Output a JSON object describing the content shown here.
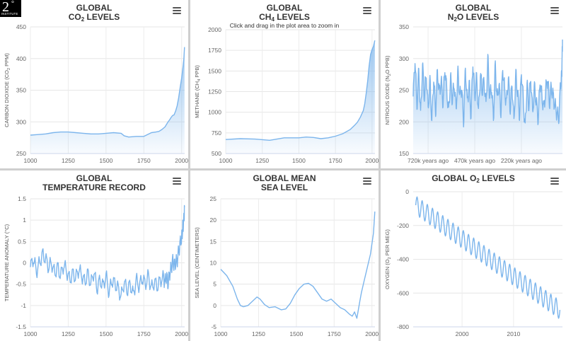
{
  "logo": {
    "numeral": "2",
    "degree": "°",
    "text": "INSTITUTE"
  },
  "panels": [
    {
      "id": "co2",
      "title_lines": [
        [
          "GLOBAL"
        ],
        [
          "CO",
          {
            "sub": "2"
          },
          " LEVELS"
        ]
      ],
      "hint": "",
      "chart_data": {
        "type": "area",
        "ylabel_parts": [
          [
            "CARBON DIOXIDE (CO"
          ],
          [
            {
              "sub": "2"
            }
          ],
          [
            " PPM)"
          ]
        ],
        "xlim": [
          1000,
          2020
        ],
        "ylim": [
          250,
          450
        ],
        "xticks": [
          1000,
          1250,
          1500,
          1750,
          2000
        ],
        "yticks": [
          250,
          300,
          350,
          400,
          450
        ],
        "series": [
          {
            "x": [
              1000,
              1050,
              1100,
              1150,
              1200,
              1250,
              1300,
              1350,
              1400,
              1450,
              1500,
              1550,
              1600,
              1620,
              1650,
              1700,
              1750,
              1800,
              1830,
              1850,
              1870,
              1890,
              1900,
              1910,
              1920,
              1930,
              1940,
              1950,
              1960,
              1970,
              1980,
              1990,
              2000,
              2005,
              2010,
              2015,
              2019
            ],
            "y": [
              279,
              280,
              281,
              283,
              284,
              284,
              283,
              282,
              281,
              281,
              282,
              283,
              282,
              278,
              276,
              277,
              277,
              283,
              284,
              285,
              288,
              292,
              296,
              300,
              303,
              307,
              310,
              311,
              317,
              325,
              338,
              354,
              369,
              379,
              389,
              400,
              418
            ]
          }
        ]
      }
    },
    {
      "id": "ch4",
      "title_lines": [
        [
          "GLOBAL"
        ],
        [
          "CH",
          {
            "sub": "4"
          },
          " LEVELS"
        ]
      ],
      "hint": "Click and drag in the plot area to zoom in",
      "chart_data": {
        "type": "area",
        "ylabel_parts": [
          [
            "METHANE (CH"
          ],
          [
            {
              "sub": "4"
            }
          ],
          [
            " PPB)"
          ]
        ],
        "xlim": [
          1000,
          2020
        ],
        "ylim": [
          500,
          2000
        ],
        "xticks": [
          1000,
          1250,
          1500,
          1750,
          2000
        ],
        "yticks": [
          500,
          750,
          1000,
          1250,
          1500,
          1750,
          2000
        ],
        "series": [
          {
            "x": [
              1000,
              1100,
              1200,
              1300,
              1400,
              1500,
              1550,
              1600,
              1650,
              1700,
              1750,
              1800,
              1850,
              1880,
              1900,
              1920,
              1940,
              1950,
              1960,
              1970,
              1980,
              1990,
              2000,
              2010,
              2019
            ],
            "y": [
              670,
              680,
              675,
              660,
              690,
              690,
              700,
              695,
              680,
              690,
              710,
              740,
              790,
              840,
              880,
              940,
              1020,
              1100,
              1230,
              1380,
              1560,
              1700,
              1760,
              1800,
              1870
            ]
          }
        ]
      }
    },
    {
      "id": "n2o",
      "title_lines": [
        [
          "GLOBAL"
        ],
        [
          "N",
          {
            "sub": "2"
          },
          "O LEVELS"
        ]
      ],
      "hint": "",
      "chart_data": {
        "type": "area",
        "ylabel_parts": [
          [
            "NITROUS OXIDE (N"
          ],
          [
            {
              "sub": "2"
            }
          ],
          [
            "O PPB)"
          ]
        ],
        "xlim": [
          800,
          0
        ],
        "ylim": [
          150,
          350
        ],
        "xticks": [
          720,
          470,
          220
        ],
        "xtick_labels": [
          "720k years ago",
          "470k years ago",
          "220k years ago"
        ],
        "yticks": [
          150,
          200,
          250,
          300,
          350
        ],
        "series": [
          {
            "x": [
              800,
              790,
              780,
              770,
              760,
              750,
              740,
              730,
              720,
              710,
              700,
              690,
              680,
              670,
              660,
              650,
              640,
              630,
              620,
              610,
              600,
              590,
              580,
              570,
              560,
              550,
              540,
              530,
              520,
              510,
              500,
              490,
              480,
              470,
              460,
              450,
              440,
              430,
              420,
              410,
              400,
              390,
              380,
              370,
              360,
              350,
              340,
              330,
              320,
              310,
              300,
              290,
              280,
              270,
              260,
              250,
              240,
              230,
              220,
              210,
              200,
              190,
              180,
              170,
              160,
              150,
              140,
              130,
              120,
              110,
              100,
              90,
              80,
              70,
              60,
              50,
              40,
              30,
              20,
              10,
              5,
              2,
              0
            ],
            "y": [
              240,
              300,
              225,
              280,
              210,
              290,
              240,
              275,
              220,
              265,
              200,
              270,
              215,
              280,
              245,
              265,
              230,
              285,
              250,
              215,
              270,
              235,
              260,
              220,
              280,
              240,
              255,
              200,
              285,
              230,
              260,
              210,
              295,
              240,
              270,
              215,
              275,
              250,
              265,
              225,
              300,
              240,
              255,
              205,
              290,
              235,
              260,
              215,
              285,
              250,
              230,
              270,
              220,
              260,
              200,
              275,
              245,
              210,
              280,
              235,
              190,
              260,
              225,
              270,
              215,
              255,
              230,
              205,
              265,
              240,
              220,
              250,
              270,
              230,
              255,
              240,
              225,
              215,
              205,
              260,
              270,
              300,
              330
            ]
          }
        ]
      }
    },
    {
      "id": "temp",
      "title_lines": [
        [
          "GLOBAL"
        ],
        [
          "TEMPERATURE RECORD"
        ]
      ],
      "hint": "",
      "chart_data": {
        "type": "line",
        "ylabel_parts": [
          [
            "TEMPERATURE ANOMALY (°C)"
          ]
        ],
        "xlim": [
          1000,
          2020
        ],
        "ylim": [
          -1.5,
          1.5
        ],
        "xticks": [
          1000,
          1250,
          1500,
          1750,
          2000
        ],
        "yticks": [
          -1.5,
          -1,
          -0.5,
          0,
          0.5,
          1,
          1.5
        ],
        "series": [
          {
            "x": [
              1000,
              1020,
              1040,
              1060,
              1080,
              1100,
              1120,
              1140,
              1160,
              1180,
              1200,
              1220,
              1240,
              1260,
              1280,
              1300,
              1320,
              1340,
              1360,
              1380,
              1400,
              1420,
              1440,
              1460,
              1480,
              1500,
              1520,
              1540,
              1560,
              1580,
              1600,
              1620,
              1640,
              1660,
              1680,
              1700,
              1720,
              1740,
              1760,
              1780,
              1800,
              1820,
              1840,
              1860,
              1880,
              1890,
              1900,
              1910,
              1920,
              1930,
              1940,
              1950,
              1960,
              1970,
              1980,
              1990,
              2000,
              2005,
              2010,
              2015,
              2019
            ],
            "y": [
              -0.1,
              0.1,
              -0.2,
              0.0,
              0.2,
              0.1,
              -0.1,
              0.0,
              -0.25,
              -0.1,
              -0.3,
              -0.05,
              -0.2,
              -0.4,
              -0.25,
              -0.35,
              -0.15,
              -0.3,
              -0.45,
              -0.25,
              -0.5,
              -0.2,
              -0.6,
              -0.4,
              -0.55,
              -0.3,
              -0.7,
              -0.4,
              -0.5,
              -0.6,
              -0.8,
              -0.45,
              -0.65,
              -0.5,
              -0.75,
              -0.4,
              -0.55,
              -0.35,
              -0.5,
              -0.3,
              -0.6,
              -0.45,
              -0.55,
              -0.4,
              -0.35,
              -0.45,
              -0.3,
              -0.5,
              -0.25,
              -0.15,
              0.05,
              -0.05,
              0.0,
              0.05,
              0.25,
              0.45,
              0.6,
              0.75,
              0.9,
              1.0,
              1.3
            ]
          }
        ]
      }
    },
    {
      "id": "sea",
      "title_lines": [
        [
          "GLOBAL MEAN"
        ],
        [
          "SEA LEVEL"
        ]
      ],
      "hint": "",
      "chart_data": {
        "type": "line",
        "ylabel_parts": [
          [
            "SEA LEVEL (CENTIMETERS)"
          ]
        ],
        "xlim": [
          1000,
          2020
        ],
        "ylim": [
          -5,
          25
        ],
        "xticks": [
          1000,
          1250,
          1500,
          1750,
          2000
        ],
        "yticks": [
          -5,
          0,
          5,
          10,
          15,
          20,
          25
        ],
        "series": [
          {
            "x": [
              1000,
              1040,
              1080,
              1110,
              1130,
              1150,
              1180,
              1210,
              1240,
              1260,
              1290,
              1320,
              1360,
              1400,
              1430,
              1460,
              1490,
              1520,
              1550,
              1580,
              1610,
              1640,
              1670,
              1700,
              1730,
              1760,
              1790,
              1820,
              1850,
              1870,
              1885,
              1900,
              1910,
              1920,
              1930,
              1950,
              1970,
              1990,
              2010,
              2019
            ],
            "y": [
              8.5,
              7,
              4.5,
              1.5,
              0,
              -0.3,
              0,
              1,
              2,
              1.5,
              0.2,
              -0.5,
              -0.3,
              -1,
              -0.8,
              0.5,
              2.5,
              4,
              5,
              5.2,
              4.5,
              3,
              1.5,
              1,
              1.5,
              0.5,
              -0.5,
              -1,
              -2,
              -2.5,
              -1.5,
              -3,
              -1,
              1,
              3,
              6,
              9,
              12,
              17,
              22
            ]
          }
        ]
      }
    },
    {
      "id": "o2",
      "title_lines": [
        [
          "GLOBAL O",
          {
            "sub": "2"
          },
          " LEVELS"
        ]
      ],
      "hint": "",
      "chart_data": {
        "type": "line",
        "ylabel_parts": [
          [
            "OXYGEN (O"
          ],
          [
            {
              "sub": "2"
            }
          ],
          [
            " PER MEG)"
          ]
        ],
        "xlim": [
          1990.5,
          2019.5
        ],
        "ylim": [
          -800,
          0
        ],
        "xticks": [
          2000,
          2010
        ],
        "yticks": [
          -800,
          -600,
          -400,
          -200,
          0
        ],
        "series": [
          {
            "trend_start": -80,
            "trend_end": -700,
            "seasonal_amplitude": 55,
            "x_start": 1991,
            "x_end": 2019
          }
        ]
      }
    }
  ]
}
